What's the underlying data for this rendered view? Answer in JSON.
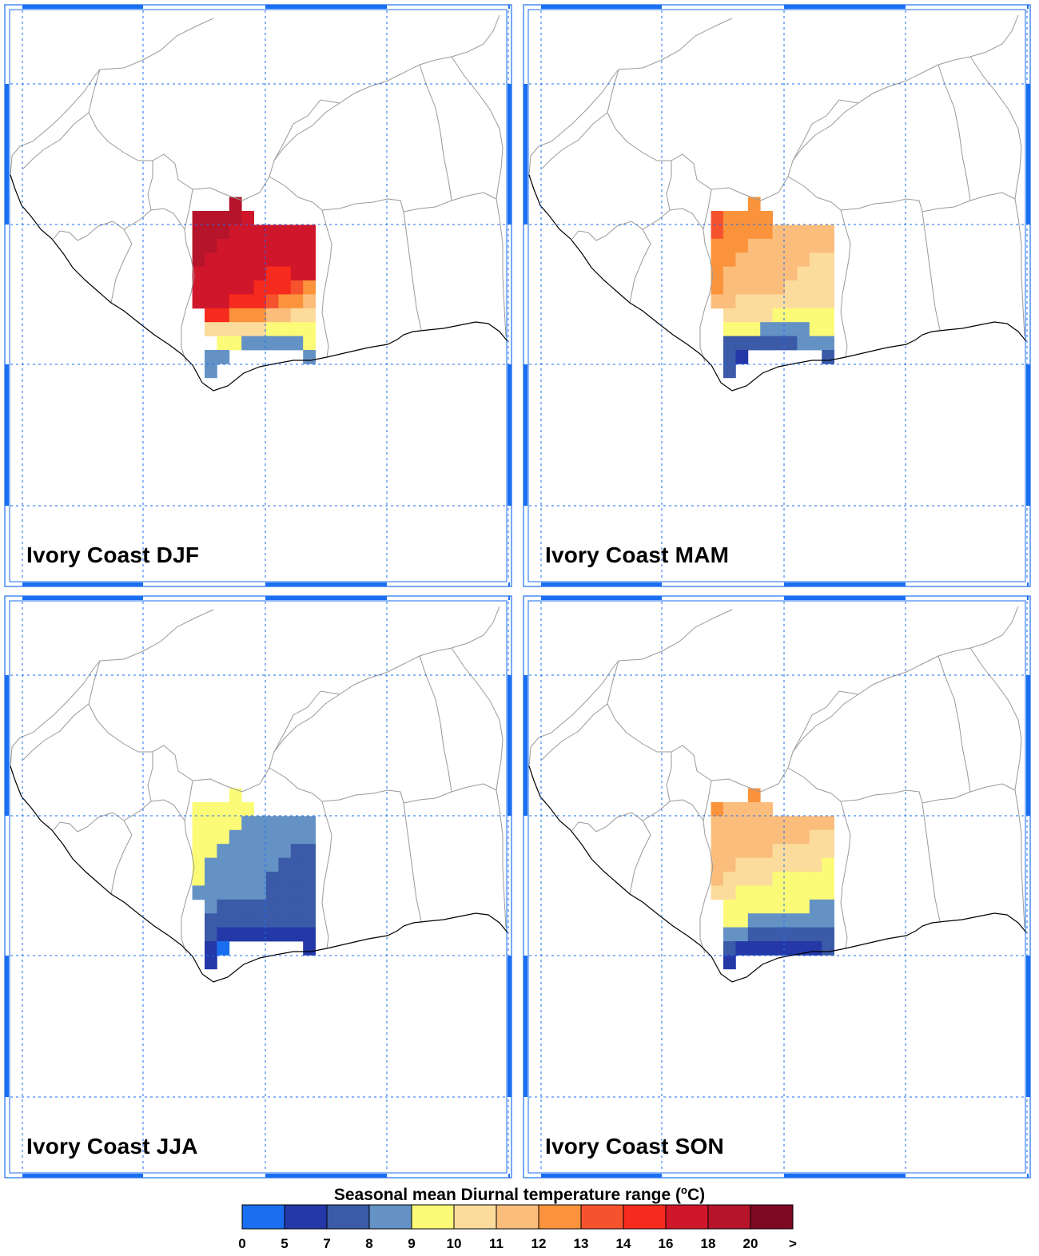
{
  "panels": [
    {
      "title": "Ivory Coast DJF"
    },
    {
      "title": "Ivory Coast MAM"
    },
    {
      "title": "Ivory Coast JJA"
    },
    {
      "title": "Ivory Coast SON"
    }
  ],
  "legend": {
    "title_prefix": "Seasonal mean Diurnal temperature range (",
    "title_sup": "o",
    "title_suffix": "C)",
    "ticks": [
      "0",
      "5",
      "7",
      "8",
      "9",
      "10",
      "11",
      "12",
      "13",
      "14",
      "16",
      "18",
      "20",
      ">"
    ],
    "colors": [
      "#1a6ef0",
      "#2438a8",
      "#3b5aa8",
      "#6592c4",
      "#fbfb78",
      "#fbdc9c",
      "#fbbd7c",
      "#fa933c",
      "#f5532e",
      "#f72a1e",
      "#d0162b",
      "#b5142a",
      "#7e0923"
    ]
  },
  "chart_data": {
    "type": "heatmap",
    "title": "Seasonal mean Diurnal temperature range (oC)",
    "region": "Ivory Coast",
    "seasons": [
      "DJF",
      "MAM",
      "JJA",
      "SON"
    ],
    "color_levels": [
      0,
      5,
      7,
      8,
      9,
      10,
      11,
      12,
      13,
      14,
      16,
      18,
      20
    ],
    "grid_rows_note": "rows listed north to south, columns west to east; values are bin indices into color_levels (-1 = no data)",
    "grids": {
      "DJF": [
        [
          -1,
          -1,
          -1,
          11,
          -1,
          -1,
          -1,
          -1,
          -1,
          -1,
          -1
        ],
        [
          11,
          11,
          11,
          11,
          10,
          -1,
          -1,
          -1,
          -1,
          -1,
          -1
        ],
        [
          11,
          11,
          11,
          10,
          10,
          10,
          10,
          10,
          10,
          10,
          -1
        ],
        [
          11,
          11,
          10,
          10,
          10,
          10,
          10,
          10,
          10,
          10,
          -1
        ],
        [
          11,
          10,
          10,
          10,
          10,
          10,
          10,
          10,
          10,
          10,
          -1
        ],
        [
          10,
          10,
          10,
          10,
          10,
          10,
          9,
          9,
          10,
          10,
          -1
        ],
        [
          10,
          10,
          10,
          10,
          10,
          9,
          9,
          9,
          8,
          7,
          -1
        ],
        [
          10,
          10,
          10,
          9,
          9,
          9,
          8,
          7,
          7,
          6,
          -1
        ],
        [
          -1,
          9,
          9,
          7,
          7,
          7,
          6,
          6,
          5,
          5,
          -1
        ],
        [
          -1,
          5,
          5,
          5,
          5,
          5,
          4,
          4,
          4,
          4,
          -1
        ],
        [
          -1,
          -1,
          4,
          4,
          3,
          3,
          3,
          3,
          3,
          4,
          -1
        ],
        [
          -1,
          3,
          3,
          -1,
          -1,
          -1,
          -1,
          -1,
          -1,
          3,
          -1
        ],
        [
          -1,
          3,
          -1,
          -1,
          -1,
          -1,
          -1,
          -1,
          -1,
          -1,
          -1
        ]
      ],
      "MAM": [
        [
          -1,
          -1,
          -1,
          7,
          -1,
          -1,
          -1,
          -1,
          -1,
          -1,
          -1
        ],
        [
          8,
          7,
          7,
          7,
          7,
          -1,
          -1,
          -1,
          -1,
          -1,
          -1
        ],
        [
          8,
          7,
          7,
          7,
          7,
          6,
          6,
          6,
          6,
          6,
          -1
        ],
        [
          7,
          7,
          7,
          6,
          6,
          6,
          6,
          6,
          6,
          6,
          -1
        ],
        [
          7,
          7,
          6,
          6,
          6,
          6,
          6,
          6,
          5,
          5,
          -1
        ],
        [
          7,
          6,
          6,
          6,
          6,
          6,
          6,
          5,
          5,
          5,
          -1
        ],
        [
          7,
          6,
          6,
          6,
          6,
          6,
          5,
          5,
          5,
          5,
          -1
        ],
        [
          6,
          6,
          5,
          5,
          5,
          5,
          5,
          5,
          5,
          5,
          -1
        ],
        [
          -1,
          5,
          5,
          5,
          5,
          4,
          4,
          4,
          4,
          4,
          -1
        ],
        [
          -1,
          4,
          4,
          4,
          3,
          3,
          3,
          3,
          4,
          4,
          -1
        ],
        [
          -1,
          2,
          2,
          2,
          2,
          2,
          2,
          3,
          3,
          3,
          -1
        ],
        [
          -1,
          2,
          1,
          -1,
          -1,
          -1,
          -1,
          -1,
          -1,
          2,
          -1
        ],
        [
          -1,
          2,
          -1,
          -1,
          -1,
          -1,
          -1,
          -1,
          -1,
          -1,
          -1
        ]
      ],
      "JJA": [
        [
          -1,
          -1,
          -1,
          4,
          -1,
          -1,
          -1,
          -1,
          -1,
          -1,
          -1
        ],
        [
          4,
          4,
          4,
          4,
          4,
          -1,
          -1,
          -1,
          -1,
          -1,
          -1
        ],
        [
          4,
          4,
          4,
          4,
          3,
          3,
          3,
          3,
          3,
          3,
          -1
        ],
        [
          4,
          4,
          4,
          3,
          3,
          3,
          3,
          3,
          3,
          3,
          -1
        ],
        [
          4,
          4,
          3,
          3,
          3,
          3,
          3,
          3,
          2,
          2,
          -1
        ],
        [
          4,
          3,
          3,
          3,
          3,
          3,
          3,
          2,
          2,
          2,
          -1
        ],
        [
          4,
          3,
          3,
          3,
          3,
          3,
          2,
          2,
          2,
          2,
          -1
        ],
        [
          3,
          3,
          3,
          3,
          3,
          3,
          2,
          2,
          2,
          2,
          -1
        ],
        [
          -1,
          3,
          2,
          2,
          2,
          2,
          2,
          2,
          2,
          2,
          -1
        ],
        [
          -1,
          2,
          2,
          2,
          2,
          2,
          2,
          2,
          2,
          2,
          -1
        ],
        [
          -1,
          2,
          1,
          1,
          1,
          1,
          1,
          1,
          1,
          1,
          -1
        ],
        [
          -1,
          1,
          0,
          -1,
          -1,
          -1,
          -1,
          -1,
          -1,
          1,
          -1
        ],
        [
          -1,
          1,
          -1,
          -1,
          -1,
          -1,
          -1,
          -1,
          -1,
          -1,
          -1
        ]
      ],
      "SON": [
        [
          -1,
          -1,
          -1,
          7,
          -1,
          -1,
          -1,
          -1,
          -1,
          -1,
          -1
        ],
        [
          7,
          6,
          6,
          6,
          6,
          -1,
          -1,
          -1,
          -1,
          -1,
          -1
        ],
        [
          6,
          6,
          6,
          6,
          6,
          6,
          6,
          6,
          6,
          6,
          -1
        ],
        [
          6,
          6,
          6,
          6,
          6,
          6,
          6,
          6,
          5,
          5,
          -1
        ],
        [
          6,
          6,
          6,
          6,
          6,
          5,
          5,
          5,
          5,
          5,
          -1
        ],
        [
          6,
          6,
          5,
          5,
          5,
          5,
          5,
          5,
          5,
          4,
          -1
        ],
        [
          6,
          5,
          5,
          5,
          5,
          4,
          4,
          4,
          4,
          4,
          -1
        ],
        [
          5,
          5,
          4,
          4,
          4,
          4,
          4,
          4,
          4,
          4,
          -1
        ],
        [
          -1,
          4,
          4,
          4,
          4,
          4,
          4,
          4,
          3,
          3,
          -1
        ],
        [
          -1,
          4,
          4,
          3,
          3,
          3,
          3,
          3,
          3,
          3,
          -1
        ],
        [
          -1,
          3,
          3,
          2,
          2,
          2,
          2,
          2,
          2,
          2,
          -1
        ],
        [
          -1,
          2,
          1,
          1,
          1,
          1,
          1,
          1,
          1,
          2,
          -1
        ],
        [
          -1,
          1,
          -1,
          -1,
          -1,
          -1,
          -1,
          -1,
          -1,
          -1,
          -1
        ]
      ]
    }
  }
}
